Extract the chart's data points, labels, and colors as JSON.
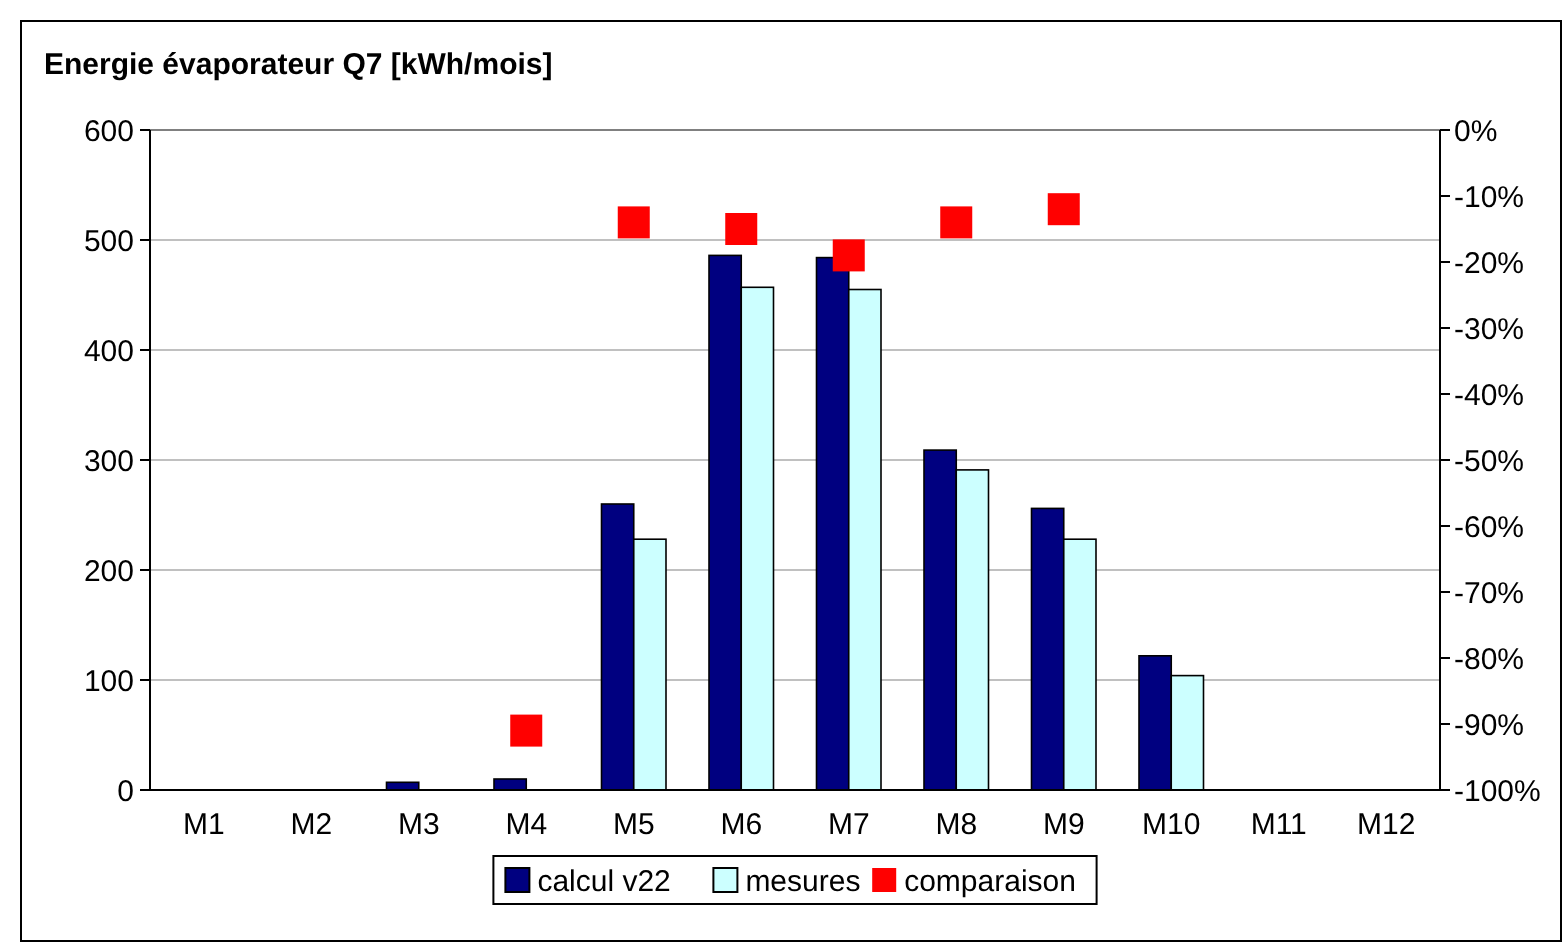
{
  "chart_data": {
    "type": "bar",
    "title": "Energie évaporateur Q7 [kWh/mois]",
    "categories": [
      "M1",
      "M2",
      "M3",
      "M4",
      "M5",
      "M6",
      "M7",
      "M8",
      "M9",
      "M10",
      "M11",
      "M12"
    ],
    "series": [
      {
        "name": "calcul v22",
        "color": "#000080",
        "values": [
          0,
          0,
          7,
          10,
          260,
          486,
          484,
          309,
          256,
          122,
          0,
          0
        ]
      },
      {
        "name": "mesures",
        "color": "#ccffff",
        "values": [
          0,
          0,
          0,
          null,
          228,
          457,
          455,
          291,
          228,
          104,
          0,
          0
        ]
      },
      {
        "name": "comparaison",
        "type": "scatter",
        "axis": "y2",
        "color": "#ff0000",
        "marker": "square",
        "values": [
          null,
          null,
          null,
          -91,
          -14,
          -15,
          -19,
          -14,
          -12,
          null,
          null,
          null
        ]
      }
    ],
    "ylim": [
      0,
      600
    ],
    "yticks": [
      0,
      100,
      200,
      300,
      400,
      500,
      600
    ],
    "y2lim": [
      -100,
      0
    ],
    "y2ticks": [
      {
        "value": 0,
        "label": "0%"
      },
      {
        "value": -10,
        "label": "-10%"
      },
      {
        "value": -20,
        "label": "-20%"
      },
      {
        "value": -30,
        "label": "-30%"
      },
      {
        "value": -40,
        "label": "-40%"
      },
      {
        "value": -50,
        "label": "-50%"
      },
      {
        "value": -60,
        "label": "-60%"
      },
      {
        "value": -70,
        "label": "-70%"
      },
      {
        "value": -80,
        "label": "-80%"
      },
      {
        "value": -90,
        "label": "-90%"
      },
      {
        "value": -100,
        "label": "-100%"
      }
    ],
    "grid": "y",
    "legend": "bottom"
  }
}
